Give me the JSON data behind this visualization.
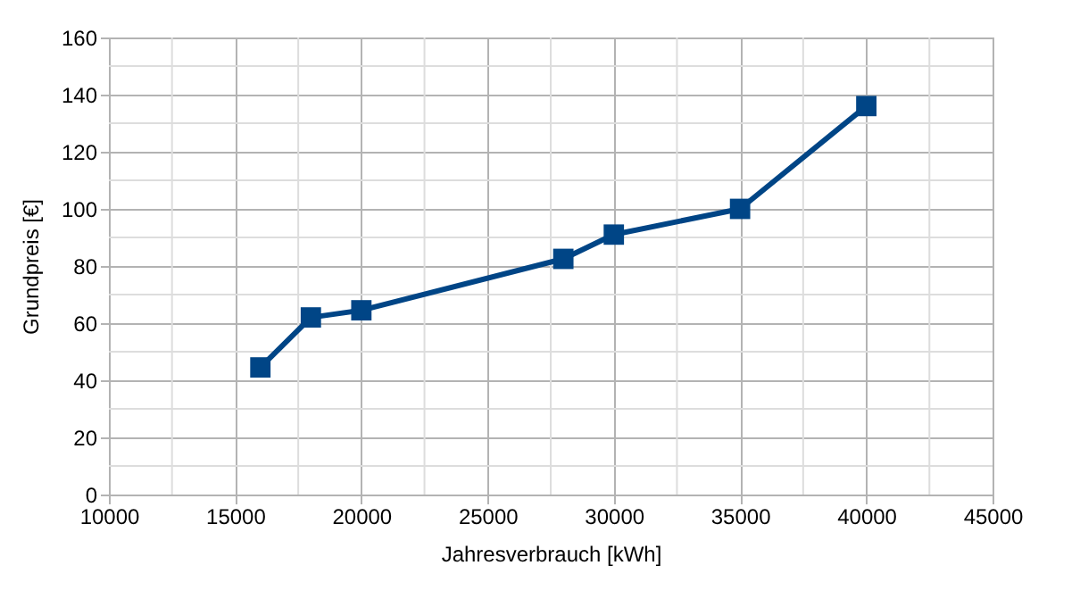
{
  "chart_data": {
    "type": "line",
    "xlabel": "Jahresverbrauch [kWh]",
    "ylabel": "Grundpreis [€]",
    "x": [
      16000,
      18000,
      20000,
      28000,
      30000,
      35000,
      40000
    ],
    "series": [
      {
        "color": "#004586",
        "values": [
          44.5,
          62,
          64.5,
          82.5,
          91,
          100,
          136
        ]
      }
    ],
    "xlim": [
      10000,
      45000
    ],
    "xticks": [
      10000,
      15000,
      20000,
      25000,
      30000,
      35000,
      40000,
      45000
    ],
    "ylim": [
      0,
      160
    ],
    "yticks": [
      0,
      20,
      40,
      60,
      80,
      100,
      120,
      140,
      160
    ],
    "grid": true,
    "marker": "square",
    "line_style": "solid"
  }
}
